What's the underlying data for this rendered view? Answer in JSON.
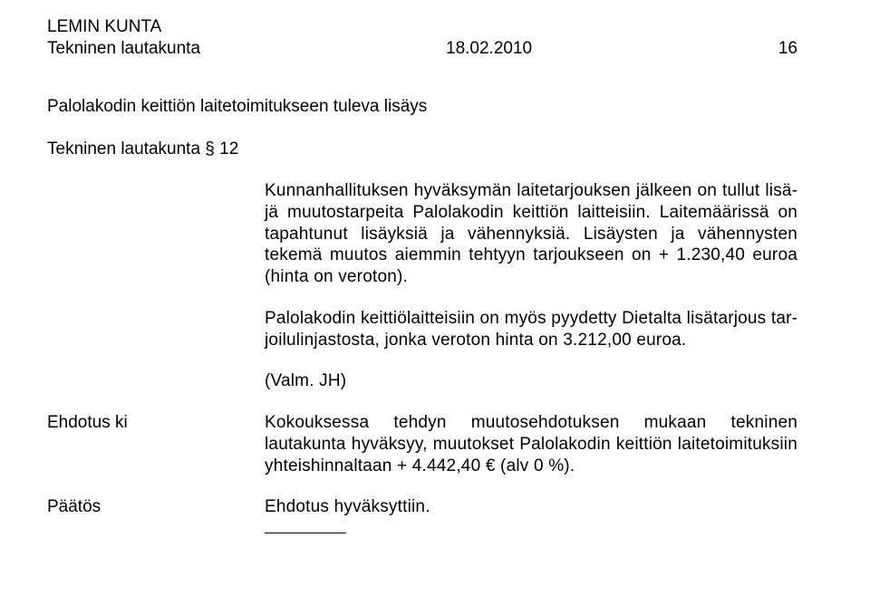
{
  "header": {
    "org": "LEMIN KUNTA",
    "board": "Tekninen lautakunta",
    "date": "18.02.2010",
    "page_no": "16"
  },
  "title": "Palolakodin keittiön laitetoimitukseen tuleva lisäys",
  "section_ref": "Tekninen lautakunta § 12",
  "paragraphs": {
    "p1": "Kunnanhallituksen hyväksymän laitetarjouksen jälkeen on tullut lisä­jä muutostarpeita Palolakodin keittiön laitteisiin. Laitemäärissä on ta­pahtunut lisäyksiä ja vähennyksiä. Lisäysten ja vähennysten tekemä muutos aiemmin tehtyyn tarjoukseen on + 1.230,40 euroa (hinta on veroton).",
    "p2": "Palolakodin keittiölaitteisiin on myös pyydetty Dietalta lisätarjous tar­joilulinjastosta, jonka veroton hinta on 3.212,00 euroa.",
    "p3": "(Valm. JH)"
  },
  "proposal": {
    "label": "Ehdotus ki",
    "text": "Kokouksessa tehdyn muutosehdotuksen mukaan tekninen lautakunta hyväksyy, muutokset Palolakodin keittiön laitetoimituksiin yhteishinnaltaan + 4.442,40 € (alv 0 %)."
  },
  "decision": {
    "label": "Päätös",
    "text": "Ehdotus hyväksyttiin."
  }
}
